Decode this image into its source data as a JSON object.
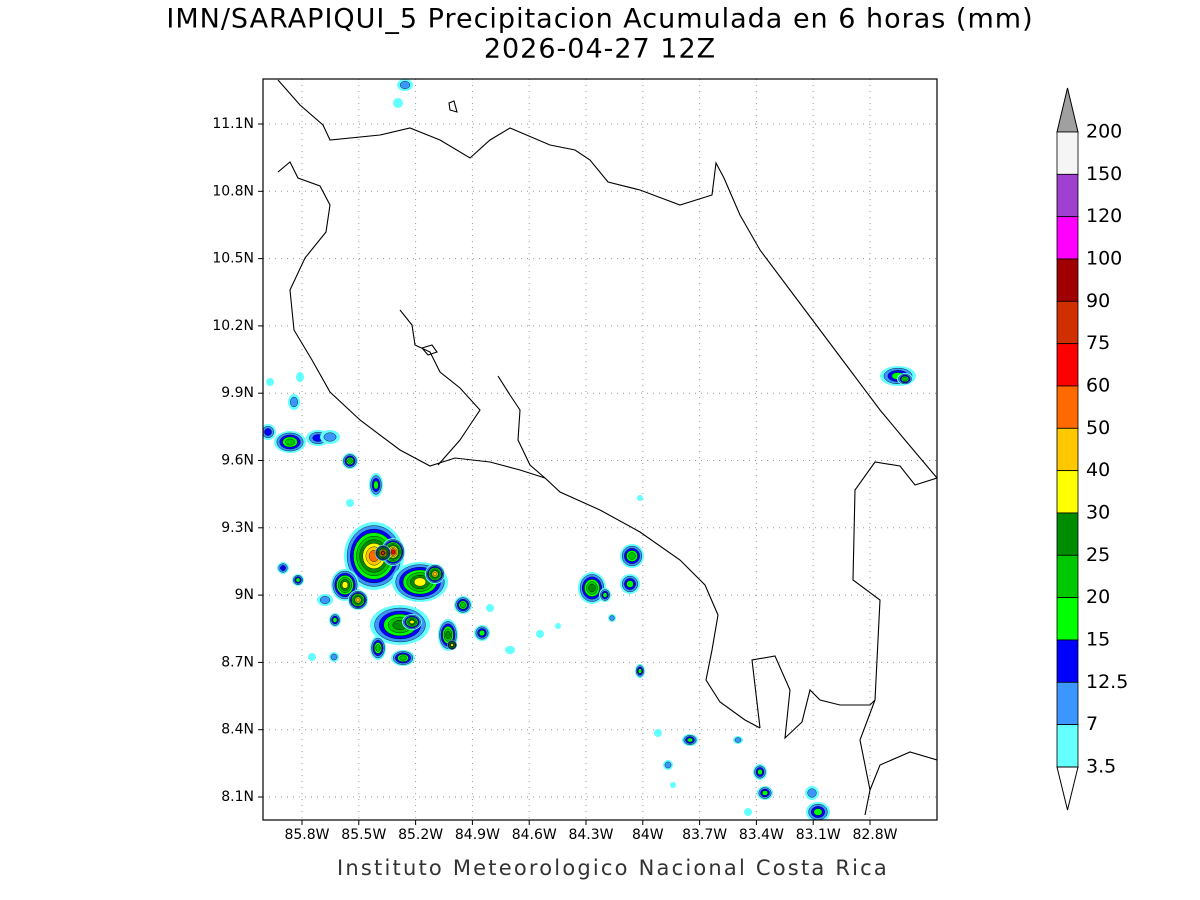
{
  "header": {
    "title": "IMN/SARAPIQUI_5 Precipitacion Acumulada en 6 horas (mm)",
    "subtitle": "2026-04-27 12Z"
  },
  "map": {
    "lat_ticks": [
      "11.1N",
      "10.8N",
      "10.5N",
      "10.2N",
      "9.9N",
      "9.6N",
      "9.3N",
      "9N",
      "8.7N",
      "8.4N",
      "8.1N"
    ],
    "lon_ticks": [
      "85.8W",
      "85.5W",
      "85.2W",
      "84.9W",
      "84.6W",
      "84.3W",
      "84W",
      "83.7W",
      "83.4W",
      "83.1W",
      "82.8W"
    ]
  },
  "legend": {
    "levels": [
      200,
      150,
      120,
      100,
      90,
      75,
      60,
      50,
      40,
      30,
      25,
      20,
      15,
      12.5,
      7,
      3.5
    ],
    "colors": [
      "#f5f5f5",
      "#a040d0",
      "#ff00ff",
      "#a00000",
      "#d03000",
      "#ff0000",
      "#ff6a00",
      "#ffc800",
      "#ffff00",
      "#008c00",
      "#00c800",
      "#00ff00",
      "#0000ff",
      "#3c96ff",
      "#64ffff"
    ],
    "over_color": "#a0a0a0",
    "under_color": "#ffffff"
  },
  "footer": {
    "credit": "Instituto Meteorologico Nacional Costa Rica"
  }
}
